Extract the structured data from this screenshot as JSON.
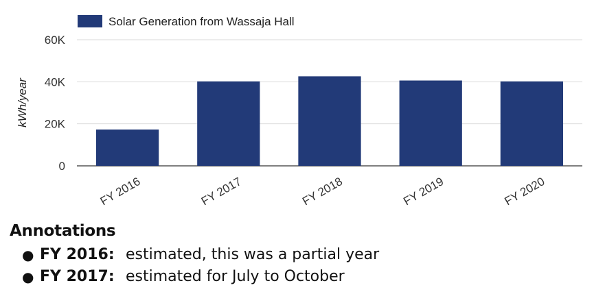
{
  "chart_data": {
    "type": "bar",
    "categories": [
      "FY 2016",
      "FY 2017",
      "FY 2018",
      "FY 2019",
      "FY 2020"
    ],
    "series": [
      {
        "name": "Solar Generation from Wassaja Hall",
        "values": [
          17300,
          40200,
          42600,
          40600,
          40200
        ]
      }
    ],
    "ylabel": "kWh/year",
    "ylim": [
      0,
      60000
    ],
    "yticks": [
      0,
      20000,
      40000,
      60000
    ],
    "ytick_labels": [
      "0",
      "20K",
      "40K",
      "60K"
    ],
    "grid": true,
    "legend": "top-left",
    "bar_color": "#223a78"
  },
  "annotations": {
    "heading": "Annotations",
    "items": [
      {
        "key": "FY 2016:",
        "text": "estimated, this was a partial year"
      },
      {
        "key": "FY 2017:",
        "text": "estimated for July to October"
      }
    ]
  }
}
